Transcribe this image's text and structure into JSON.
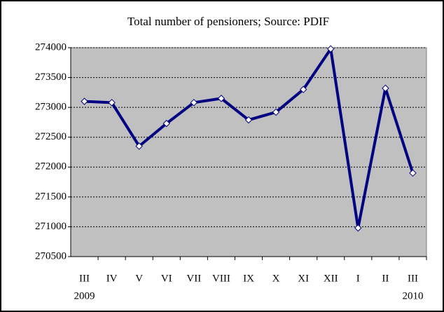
{
  "chart_data": {
    "type": "line",
    "title": "Total number of pensioners; Source: PDIF",
    "categories": [
      "III",
      "IV",
      "V",
      "VI",
      "VII",
      "VIII",
      "IX",
      "X",
      "XI",
      "XII",
      "I",
      "II",
      "III"
    ],
    "years": [
      "2009",
      null,
      null,
      null,
      null,
      null,
      null,
      null,
      null,
      null,
      null,
      null,
      "2010"
    ],
    "series": [
      {
        "name": "Total number of pensioners",
        "color": "#000080",
        "values": [
          273100,
          273080,
          272350,
          272730,
          273080,
          273150,
          272790,
          272920,
          273300,
          273980,
          270980,
          273320,
          271900
        ]
      }
    ],
    "ylim": [
      270500,
      274000
    ],
    "yticks": [
      270500,
      271000,
      271500,
      272000,
      272500,
      273000,
      273500,
      274000
    ],
    "grid": true
  }
}
